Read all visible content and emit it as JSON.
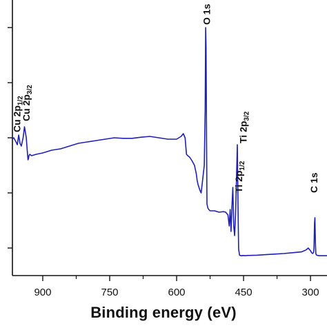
{
  "chart_data": {
    "type": "line",
    "title": "",
    "xlabel": "Binding energy (eV)",
    "ylabel": "",
    "x_reversed": true,
    "xlim": [
      968,
      263
    ],
    "ylim": [
      0,
      100
    ],
    "grid": false,
    "legend": "none",
    "x_ticks": [
      900,
      750,
      600,
      450,
      300
    ],
    "x_tick_labels": [
      "900",
      "750",
      "600",
      "450",
      "300"
    ],
    "y_tick_values": [
      10,
      30,
      50,
      70,
      90
    ],
    "y_tick_labels": [],
    "series": [
      {
        "color": "#1f1fb4",
        "x": [
          968,
          965,
          960,
          957,
          954,
          951,
          948,
          944,
          941,
          937,
          935,
          933,
          932,
          931,
          929,
          925,
          915,
          900,
          880,
          860,
          840,
          820,
          800,
          780,
          760,
          740,
          720,
          700,
          680,
          660,
          640,
          620,
          600,
          590,
          585,
          581,
          578,
          575,
          571,
          565,
          560,
          556,
          554,
          552,
          550,
          548,
          545,
          538,
          536,
          535,
          534,
          533,
          532,
          530,
          528,
          525,
          515,
          505,
          495,
          490,
          485,
          482,
          480,
          478,
          476,
          474,
          472,
          470,
          468,
          466,
          464,
          462,
          461,
          460,
          459,
          458,
          457,
          456,
          455,
          454,
          453,
          452,
          450,
          448,
          440,
          420,
          400,
          380,
          360,
          340,
          320,
          310,
          305,
          300,
          297,
          295,
          293,
          292,
          291,
          290,
          289,
          288,
          287,
          284,
          280,
          270,
          263
        ],
        "y": [
          49.5,
          50.0,
          48.5,
          47.5,
          51.0,
          48.0,
          47.0,
          50.0,
          54.0,
          50.0,
          46.0,
          42.0,
          42.5,
          43.5,
          44.0,
          43.5,
          44.0,
          44.5,
          45.5,
          46.0,
          47.0,
          48.0,
          48.5,
          49.0,
          49.5,
          50.0,
          49.8,
          49.8,
          50.2,
          50.5,
          50.0,
          49.5,
          49.5,
          50.5,
          51.5,
          50.0,
          44.0,
          43.5,
          43.0,
          41.5,
          40.0,
          37.0,
          34.5,
          33.0,
          32.0,
          31.0,
          30.0,
          40.0,
          60.0,
          90.0,
          83.0,
          50.0,
          26.0,
          24.5,
          24.0,
          23.5,
          23.5,
          23.0,
          23.2,
          23.0,
          22.0,
          18.0,
          24.0,
          16.0,
          25.0,
          32.0,
          18.0,
          14.5,
          22.0,
          34.0,
          47.5,
          20.0,
          9.5,
          8.5,
          7.5,
          7.3,
          7.3,
          7.2,
          7.2,
          7.2,
          7.3,
          7.2,
          7.3,
          7.2,
          7.3,
          7.4,
          7.6,
          7.8,
          8.0,
          8.3,
          8.6,
          9.3,
          10.0,
          9.0,
          8.2,
          8.0,
          8.5,
          10.0,
          19.0,
          21.0,
          12.0,
          8.0,
          7.5,
          7.3,
          7.2,
          7.2,
          7.2
        ]
      }
    ],
    "annotations": [
      {
        "label": "Cu 2p",
        "sub": "1/2",
        "x": 958,
        "y": 52
      },
      {
        "label": "Cu 2p",
        "sub": "3/2",
        "x": 937,
        "y": 56
      },
      {
        "label": "O 1s",
        "x": 533,
        "y": 91
      },
      {
        "label": "Ti 2p",
        "sub": "1/2",
        "x": 461,
        "y": 30
      },
      {
        "label": "Ti 2p",
        "sub": "3/2",
        "x": 451,
        "y": 48
      },
      {
        "label": "C 1s",
        "x": 292,
        "y": 30
      }
    ]
  }
}
